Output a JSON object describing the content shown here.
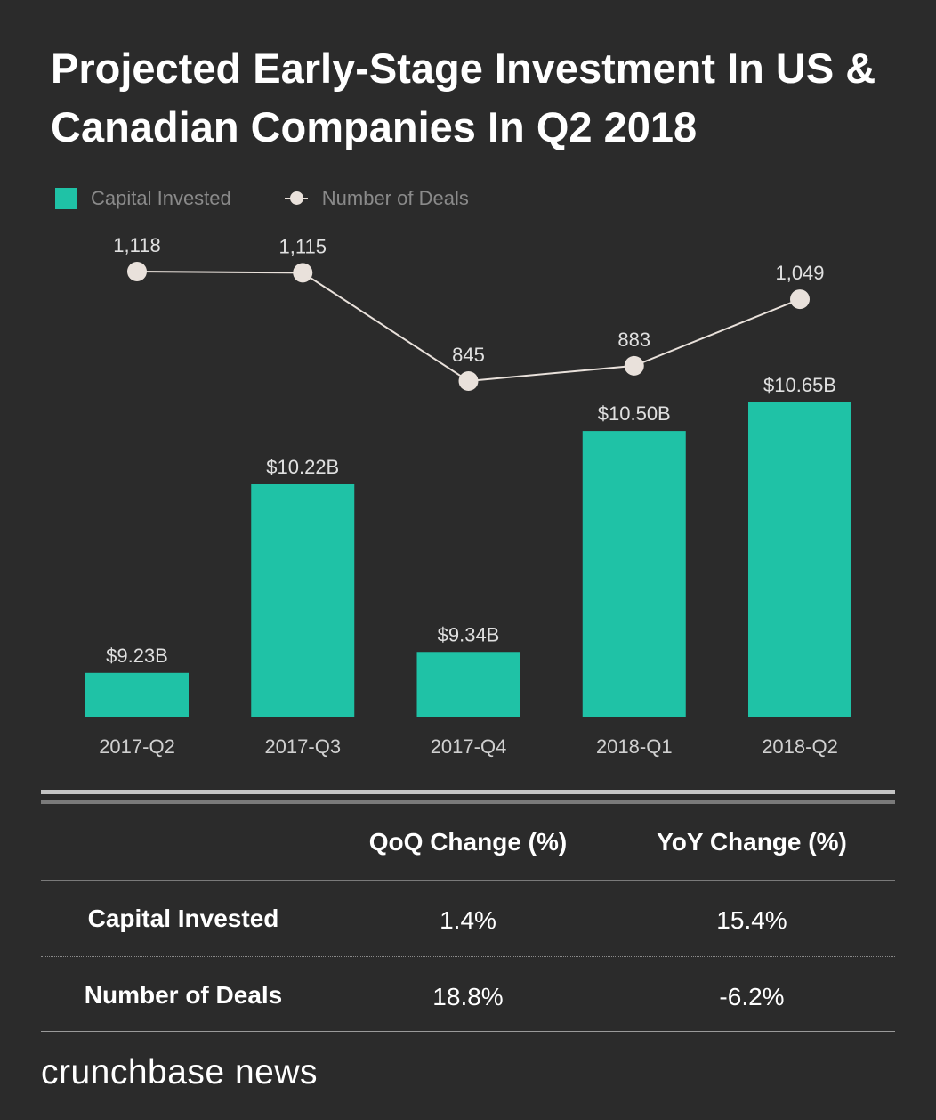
{
  "title": "Projected Early-Stage Investment In US & Canadian Companies In Q2 2018",
  "colors": {
    "bar": "#1fc2a6",
    "line": "#e9e1db",
    "background": "#2b2b2b"
  },
  "chart_data": {
    "type": "bar",
    "title": "Projected Early-Stage Investment In US & Canadian Companies In Q2 2018",
    "categories": [
      "2017-Q2",
      "2017-Q3",
      "2017-Q4",
      "2018-Q1",
      "2018-Q2"
    ],
    "legend": [
      "Capital Invested",
      "Number of Deals"
    ],
    "legend_position": "top-left",
    "grid": false,
    "series": [
      {
        "name": "Capital Invested",
        "type": "bar",
        "values": [
          9.23,
          10.22,
          9.34,
          10.5,
          10.65
        ],
        "labels": [
          "$9.23B",
          "$10.22B",
          "$9.34B",
          "$10.50B",
          "$10.65B"
        ],
        "ylim": [
          9.0,
          10.65
        ]
      },
      {
        "name": "Number of Deals",
        "type": "line",
        "values": [
          1118,
          1115,
          845,
          883,
          1049
        ],
        "labels": [
          "1,118",
          "1,115",
          "845",
          "883",
          "1,049"
        ]
      }
    ]
  },
  "table": {
    "headers": [
      "QoQ Change (%)",
      "YoY Change (%)"
    ],
    "rows": [
      {
        "label": "Capital Invested",
        "qoq": "1.4%",
        "yoy": "15.4%"
      },
      {
        "label": "Number of Deals",
        "qoq": "18.8%",
        "yoy": "-6.2%"
      }
    ]
  },
  "logo": "crunchbase news"
}
